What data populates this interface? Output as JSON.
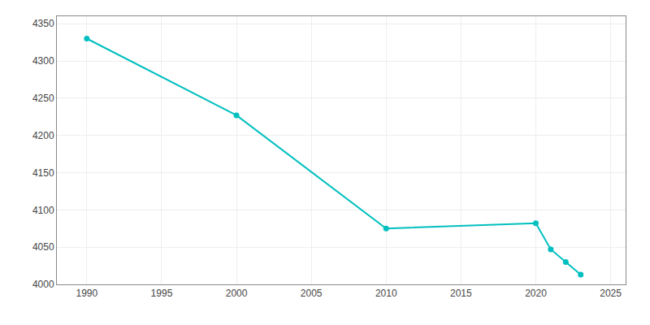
{
  "chart_data": {
    "type": "line",
    "x": [
      1990,
      2000,
      2010,
      2020,
      2021,
      2022,
      2023
    ],
    "values": [
      4330,
      4227,
      4075,
      4082,
      4047,
      4030,
      4013
    ],
    "color": "#00BFBF",
    "marker": "circle",
    "xlim": [
      1988,
      2026
    ],
    "ylim": [
      4000,
      4360
    ],
    "xticks": [
      1990,
      1995,
      2000,
      2005,
      2010,
      2015,
      2020,
      2025
    ],
    "yticks": [
      4000,
      4050,
      4100,
      4150,
      4200,
      4250,
      4300,
      4350
    ],
    "grid": true
  }
}
